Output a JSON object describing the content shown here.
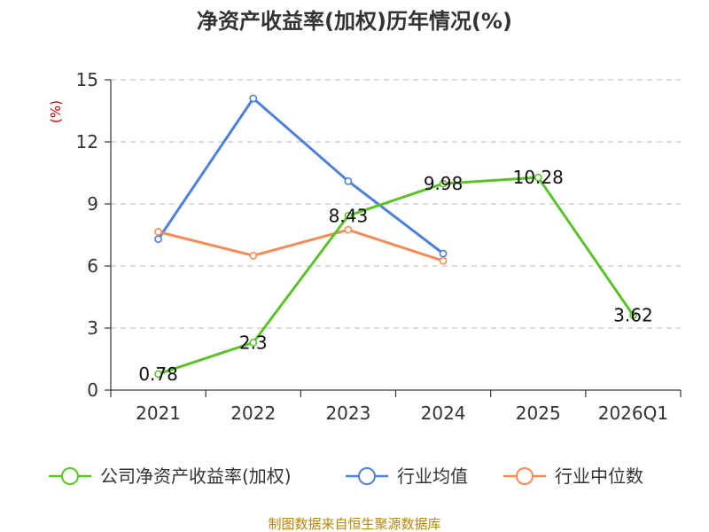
{
  "chart_data": {
    "type": "line",
    "title": "净资产收益率(加权)历年情况(%)",
    "ylabel": "(%)",
    "xlabel": "",
    "categories": [
      "2021",
      "2022",
      "2023",
      "2024",
      "2025",
      "2026Q1"
    ],
    "ylim": [
      0,
      15
    ],
    "yticks": [
      0,
      3,
      6,
      9,
      12,
      15
    ],
    "grid": true,
    "legend_position": "bottom",
    "series": [
      {
        "name": "公司净资产收益率(加权)",
        "color": "#5cc22b",
        "values": [
          0.78,
          2.3,
          8.43,
          9.98,
          10.28,
          3.62
        ],
        "labels": [
          "0.78",
          "2.3",
          "8.43",
          "9.98",
          "10.28",
          "3.62"
        ]
      },
      {
        "name": "行业均值",
        "color": "#4e7fd9",
        "values": [
          7.3,
          14.1,
          10.1,
          6.6,
          null,
          null
        ]
      },
      {
        "name": "行业中位数",
        "color": "#f28c5a",
        "values": [
          7.65,
          6.5,
          7.75,
          6.25,
          null,
          null
        ]
      }
    ],
    "source": "制图数据来自恒生聚源数据库"
  }
}
